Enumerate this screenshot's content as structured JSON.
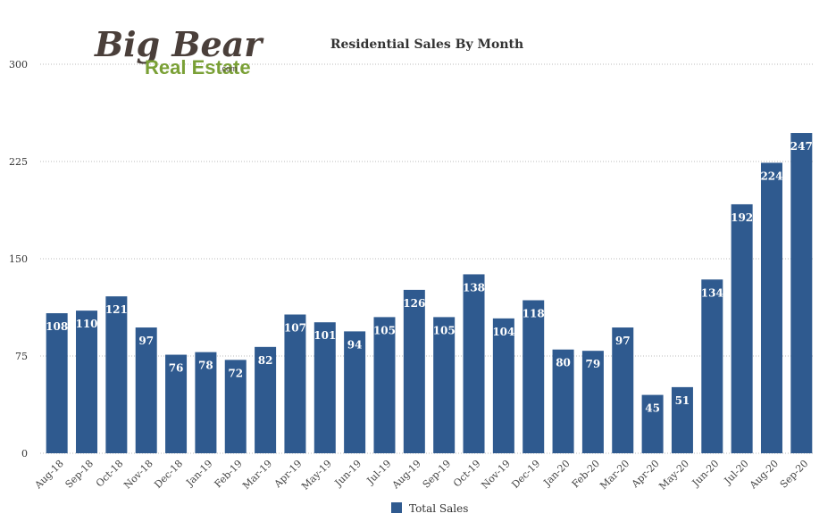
{
  "logo": {
    "line1": "Big Bear",
    "line2": "Real Estate",
    "suffix": ".com"
  },
  "colors": {
    "bar": "#2f5a8f",
    "grid": "#bbbbbb",
    "logo_dark": "#4a3f3a",
    "logo_green": "#7aa036"
  },
  "chart_data": {
    "type": "bar",
    "title": "Residential Sales By Month",
    "xlabel": "",
    "ylabel": "",
    "ylim": [
      0,
      300
    ],
    "yticks": [
      0,
      75,
      150,
      225,
      300
    ],
    "grid": true,
    "legend_position": "bottom",
    "categories": [
      "Aug-18",
      "Sep-18",
      "Oct-18",
      "Nov-18",
      "Dec-18",
      "Jan-19",
      "Feb-19",
      "Mar-19",
      "Apr-19",
      "May-19",
      "Jun-19",
      "Jul-19",
      "Aug-19",
      "Sep-19",
      "Oct-19",
      "Nov-19",
      "Dec-19",
      "Jan-20",
      "Feb-20",
      "Mar-20",
      "Apr-20",
      "May-20",
      "Jun-20",
      "Jul-20",
      "Aug-20",
      "Sep-20"
    ],
    "series": [
      {
        "name": "Total Sales",
        "color": "#2f5a8f",
        "values": [
          108,
          110,
          121,
          97,
          76,
          78,
          72,
          82,
          107,
          101,
          94,
          105,
          126,
          105,
          138,
          104,
          118,
          80,
          79,
          97,
          45,
          51,
          134,
          192,
          224,
          247
        ]
      }
    ]
  }
}
